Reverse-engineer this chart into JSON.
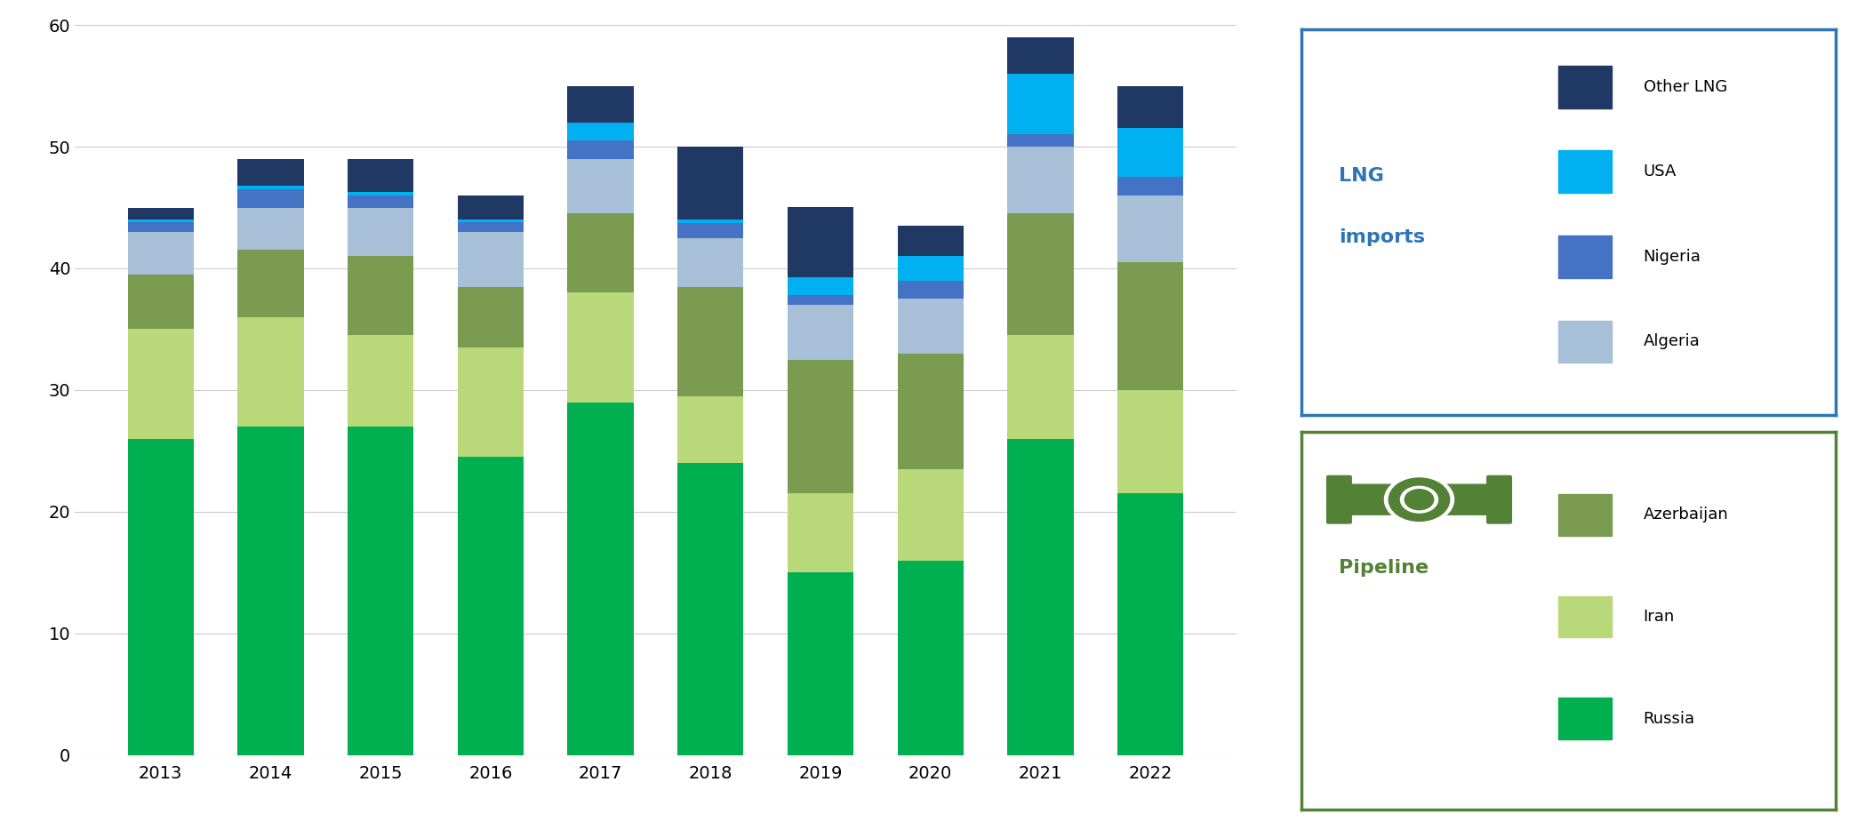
{
  "years": [
    "2013",
    "2014",
    "2015",
    "2016",
    "2017",
    "2018",
    "2019",
    "2020",
    "2021",
    "2022"
  ],
  "russia": [
    26.0,
    27.0,
    27.0,
    24.5,
    29.0,
    24.0,
    15.0,
    16.0,
    26.0,
    21.5
  ],
  "iran": [
    9.0,
    9.0,
    7.5,
    9.0,
    9.0,
    5.5,
    6.5,
    7.5,
    8.5,
    8.5
  ],
  "azerbaijan": [
    4.5,
    5.5,
    6.5,
    5.0,
    6.5,
    9.0,
    11.0,
    9.5,
    10.0,
    10.5
  ],
  "algeria": [
    3.5,
    3.5,
    4.0,
    4.5,
    4.5,
    4.0,
    4.5,
    4.5,
    5.5,
    5.5
  ],
  "nigeria": [
    0.8,
    1.5,
    1.0,
    0.8,
    1.5,
    1.2,
    0.8,
    1.5,
    1.0,
    1.5
  ],
  "usa": [
    0.2,
    0.3,
    0.3,
    0.2,
    1.5,
    0.3,
    1.5,
    2.0,
    5.0,
    4.0
  ],
  "other_lng": [
    1.0,
    2.2,
    2.7,
    2.0,
    3.0,
    6.0,
    5.7,
    2.5,
    3.0,
    3.5
  ],
  "colors": {
    "russia": "#00b050",
    "iran": "#b8d87a",
    "azerbaijan": "#7a9b50",
    "algeria": "#a8bfd8",
    "nigeria": "#4472c4",
    "usa": "#00b0f0",
    "other_lng": "#1f3864"
  },
  "legend_labels": {
    "russia": "Russia",
    "iran": "Iran",
    "azerbaijan": "Azerbaijan",
    "algeria": "Algeria",
    "nigeria": "Nigeria",
    "usa": "USA",
    "other_lng": "Other LNG"
  },
  "ylim": [
    0,
    60
  ],
  "yticks": [
    0,
    10,
    20,
    30,
    40,
    50,
    60
  ],
  "background_color": "#ffffff",
  "lng_box_color": "#2e75b6",
  "pipeline_box_color": "#538135",
  "lng_items": [
    "other_lng",
    "usa",
    "nigeria",
    "algeria"
  ],
  "pipe_items": [
    "azerbaijan",
    "iran",
    "russia"
  ]
}
